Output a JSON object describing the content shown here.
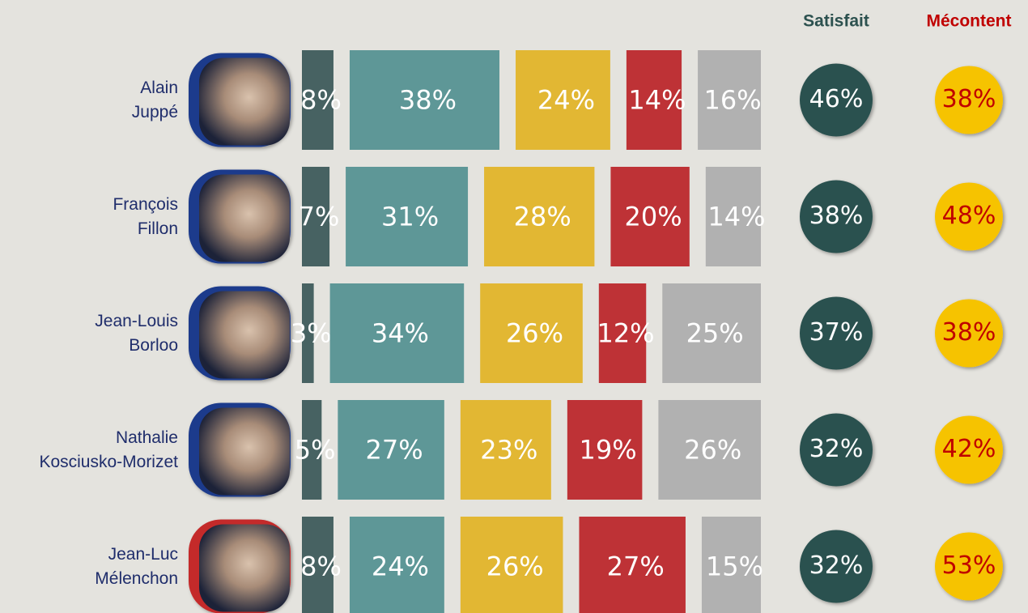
{
  "chart_data": {
    "type": "bar",
    "categories": [
      [
        "Alain",
        "Juppé"
      ],
      [
        "François",
        "Fillon"
      ],
      [
        "Jean-Louis",
        "Borloo"
      ],
      [
        "Nathalie",
        "Kosciusko-Morizet"
      ],
      [
        "Jean-Luc",
        "Mélenchon"
      ]
    ],
    "series": [
      {
        "color": "#476262",
        "values": [
          8,
          7,
          3,
          5,
          8
        ],
        "value_labels": [
          "8%",
          "7%",
          "3%",
          "5%",
          "8%"
        ]
      },
      {
        "color": "#5e9797",
        "values": [
          38,
          31,
          34,
          27,
          24
        ],
        "value_labels": [
          "38%",
          "31%",
          "34%",
          "27%",
          "24%"
        ]
      },
      {
        "color": "#e2b733",
        "values": [
          24,
          28,
          26,
          23,
          26
        ],
        "value_labels": [
          "24%",
          "28%",
          "26%",
          "23%",
          "26%"
        ]
      },
      {
        "color": "#be3236",
        "values": [
          14,
          20,
          12,
          19,
          27
        ],
        "value_labels": [
          "14%",
          "20%",
          "12%",
          "19%",
          "27%"
        ]
      },
      {
        "color": "#b1b1b1",
        "values": [
          16,
          14,
          25,
          26,
          15
        ],
        "value_labels": [
          "16%",
          "14%",
          "25%",
          "26%",
          "15%"
        ]
      }
    ],
    "summary": [
      {
        "name": "Satisfait",
        "color": "#2c514f",
        "label_color": "#ffffff",
        "values": [
          46,
          38,
          37,
          32,
          32
        ],
        "value_labels": [
          "46%",
          "38%",
          "37%",
          "32%",
          "32%"
        ]
      },
      {
        "name": "Mécontent",
        "color": "#f6c300",
        "label_color": "#c00000",
        "values": [
          38,
          48,
          38,
          42,
          53
        ],
        "value_labels": [
          "38%",
          "48%",
          "38%",
          "42%",
          "53%"
        ]
      }
    ]
  }
}
